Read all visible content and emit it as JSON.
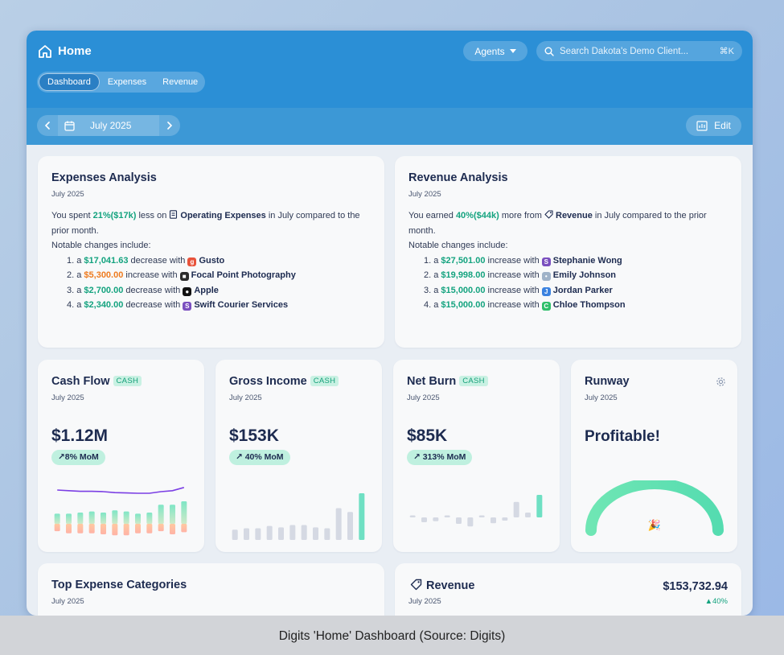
{
  "header": {
    "title": "Home",
    "tabs": [
      {
        "label": "Dashboard",
        "active": true
      },
      {
        "label": "Expenses",
        "active": false
      },
      {
        "label": "Revenue",
        "active": false
      }
    ],
    "agents_label": "Agents",
    "search_placeholder": "Search Dakota's Demo Client...",
    "search_shortcut": "⌘K"
  },
  "toolbar": {
    "period": "July 2025",
    "edit_label": "Edit"
  },
  "expenses_analysis": {
    "title": "Expenses Analysis",
    "period": "July 2025",
    "intro_pre": "You spent ",
    "pct": "21%",
    "amount": "($17k)",
    "intro_mid": " less on ",
    "category": "Operating Expenses",
    "intro_post": " in July compared to the prior month.",
    "notable": "Notable changes include:",
    "items": [
      {
        "n": "1.",
        "amount": "$17,041.63",
        "dir": "decrease",
        "vendor": "Gusto",
        "icon": "gusto-icon",
        "icon_color": "#e8533b",
        "icon_char": "g",
        "color": "green"
      },
      {
        "n": "2.",
        "amount": "$5,300.00",
        "dir": "increase",
        "vendor": "Focal Point Photography",
        "icon": "camera-icon",
        "icon_color": "#2b2b2b",
        "icon_char": "■",
        "color": "orange"
      },
      {
        "n": "3.",
        "amount": "$2,700.00",
        "dir": "decrease",
        "vendor": "Apple",
        "icon": "apple-icon",
        "icon_color": "#111111",
        "icon_char": "●",
        "color": "green"
      },
      {
        "n": "4.",
        "amount": "$2,340.00",
        "dir": "decrease",
        "vendor": "Swift Courier Services",
        "icon": "swift-icon",
        "icon_color": "#7a4fbf",
        "icon_char": "S",
        "color": "green"
      }
    ]
  },
  "revenue_analysis": {
    "title": "Revenue Analysis",
    "period": "July 2025",
    "intro_pre": "You earned ",
    "pct": "40%",
    "amount": "($44k)",
    "intro_mid": " more from ",
    "category": "Revenue",
    "intro_post": " in July compared to the prior month.",
    "notable": "Notable changes include:",
    "items": [
      {
        "n": "1.",
        "amount": "$27,501.00",
        "dir": "increase",
        "vendor": "Stephanie Wong",
        "icon": "avatar-s-icon",
        "icon_color": "#7a4fbf",
        "icon_char": "S"
      },
      {
        "n": "2.",
        "amount": "$19,998.00",
        "dir": "increase",
        "vendor": "Emily Johnson",
        "icon": "person-icon",
        "icon_color": "#9fb2c8",
        "icon_char": "•"
      },
      {
        "n": "3.",
        "amount": "$15,000.00",
        "dir": "increase",
        "vendor": "Jordan Parker",
        "icon": "avatar-j-icon",
        "icon_color": "#3b82e0",
        "icon_char": "J"
      },
      {
        "n": "4.",
        "amount": "$15,000.00",
        "dir": "increase",
        "vendor": "Chloe Thompson",
        "icon": "avatar-c-icon",
        "icon_color": "#2fbf6a",
        "icon_char": "C"
      }
    ]
  },
  "cash_flow": {
    "title": "Cash Flow",
    "tag": "CASH",
    "period": "July 2025",
    "value": "$1.12M",
    "change": "↗8% MoM",
    "bars_up": [
      0.45,
      0.45,
      0.5,
      0.55,
      0.5,
      0.6,
      0.55,
      0.45,
      0.5,
      0.85,
      0.85,
      1.0
    ],
    "bars_down": [
      0.35,
      0.45,
      0.45,
      0.45,
      0.5,
      0.55,
      0.55,
      0.45,
      0.45,
      0.35,
      0.5,
      0.4
    ],
    "line": [
      0.9,
      0.88,
      0.86,
      0.86,
      0.85,
      0.82,
      0.81,
      0.8,
      0.8,
      0.85,
      0.88,
      0.98
    ]
  },
  "gross_income": {
    "title": "Gross Income",
    "tag": "CASH",
    "period": "July 2025",
    "value": "$153K",
    "change": "↗ 40% MoM",
    "bars": [
      0.22,
      0.25,
      0.25,
      0.3,
      0.27,
      0.32,
      0.32,
      0.27,
      0.25,
      0.68,
      0.6,
      1.0
    ]
  },
  "net_burn": {
    "title": "Net Burn",
    "tag": "CASH",
    "period": "July 2025",
    "value": "$85K",
    "change": "↗ 313% MoM",
    "bars": [
      0.05,
      -0.15,
      -0.12,
      0.05,
      -0.2,
      -0.28,
      0.05,
      -0.18,
      -0.1,
      0.48,
      0.15,
      0.7
    ]
  },
  "runway": {
    "title": "Runway",
    "period": "July 2025",
    "value": "Profitable!",
    "gauge_icon": "party-popper-icon",
    "gauge_glyph": "🎉"
  },
  "top_expense": {
    "title": "Top Expense Categories",
    "period": "July 2025"
  },
  "revenue_card": {
    "title": "Revenue",
    "period": "July 2025",
    "amount": "$153,732.94",
    "change": "40%"
  },
  "caption": "Digits 'Home' Dashboard (Source: Digits)",
  "colors": {
    "header_blue": "#2b8fd6",
    "accent_green": "#14a37f",
    "accent_orange": "#ee7b1f",
    "navy": "#1d2b50",
    "bar_gray": "#d5d9e3",
    "bar_teal": "#6fe0c3",
    "line_purple": "#7b3fe4"
  }
}
